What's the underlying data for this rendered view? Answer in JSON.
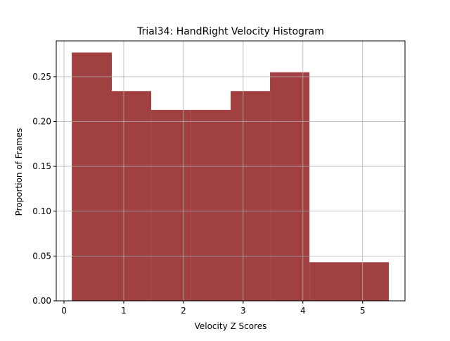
{
  "chart_data": {
    "type": "bar",
    "title": "Trial34: HandRight Velocity Histogram",
    "xlabel": "Velocity Z Scores",
    "ylabel": "Proportion of Frames",
    "bin_edges": [
      0.13,
      0.8,
      1.46,
      2.12,
      2.79,
      3.45,
      4.11,
      5.44
    ],
    "values": [
      0.277,
      0.234,
      0.213,
      0.213,
      0.234,
      0.255,
      0.043
    ],
    "xlim": [
      -0.13,
      5.71
    ],
    "ylim": [
      0,
      0.29
    ],
    "xticks": [
      0,
      1,
      2,
      3,
      4,
      5
    ],
    "xtick_labels": [
      "0",
      "1",
      "2",
      "3",
      "4",
      "5"
    ],
    "yticks": [
      0,
      0.05,
      0.1,
      0.15,
      0.2,
      0.25
    ],
    "ytick_labels": [
      "0.00",
      "0.05",
      "0.10",
      "0.15",
      "0.20",
      "0.25"
    ],
    "grid": true,
    "bar_color": "#a04040"
  }
}
